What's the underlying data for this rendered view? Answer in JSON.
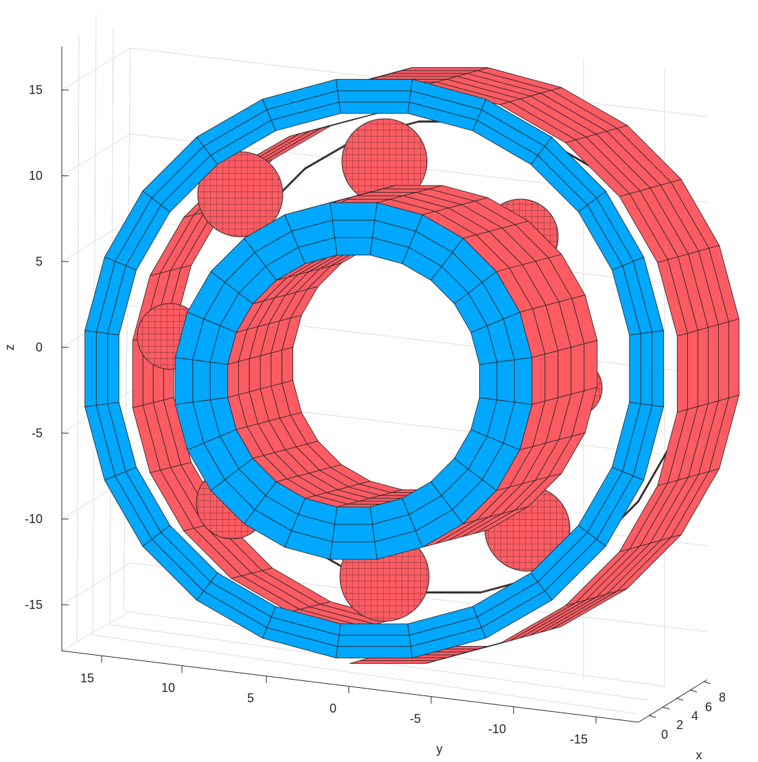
{
  "axes": {
    "z_label": "z",
    "y_label": "y",
    "x_label": "x",
    "z_ticks": [
      "15",
      "10",
      "5",
      "0",
      "-5",
      "-10",
      "-15"
    ],
    "y_ticks": [
      "15",
      "10",
      "5",
      "0",
      "-5",
      "-10",
      "-15"
    ],
    "x_ticks": [
      "0",
      "2",
      "4",
      "6",
      "8"
    ]
  },
  "colors": {
    "ring_face": "#00a8ff",
    "ring_side": "#ff5b63",
    "ball": "#ff5b63",
    "edge": "#2a2a2a",
    "grid": "#dcdcdc"
  },
  "parts": [
    "outer-ring",
    "inner-ring",
    "balls"
  ]
}
